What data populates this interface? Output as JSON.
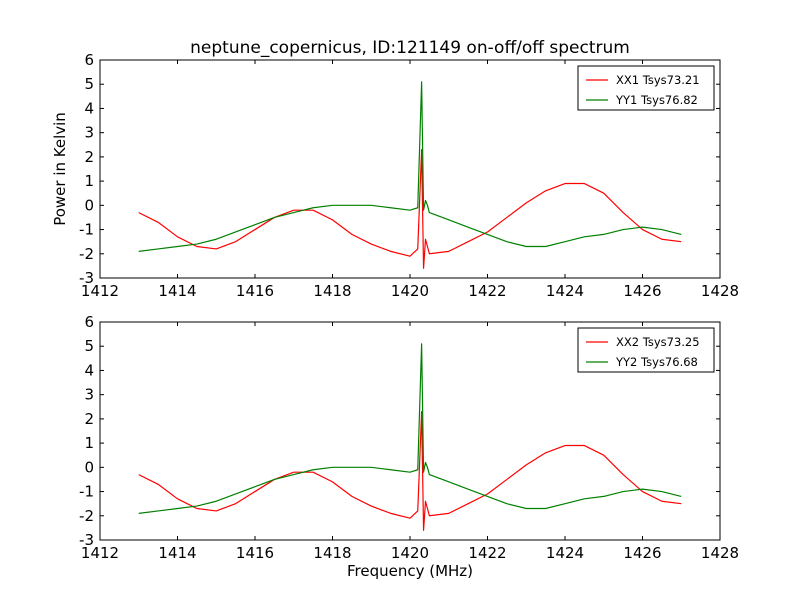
{
  "figure": {
    "title": "neptune_copernicus, ID:121149 on-off/off spectrum"
  },
  "chart_data": [
    {
      "type": "line",
      "title": "neptune_copernicus, ID:121149 on-off/off spectrum",
      "xlabel": "",
      "ylabel": "Power in Kelvin",
      "xlim": [
        1412,
        1428
      ],
      "ylim": [
        -3,
        6
      ],
      "xticks": [
        1412,
        1414,
        1416,
        1418,
        1420,
        1422,
        1424,
        1426,
        1428
      ],
      "yticks": [
        -3,
        -2,
        -1,
        0,
        1,
        2,
        3,
        4,
        5,
        6
      ],
      "grid": false,
      "legend_position": "top-right",
      "series": [
        {
          "name": "XX1 Tsys73.21",
          "color": "#ff0000",
          "x": [
            1413.0,
            1413.5,
            1414.0,
            1414.5,
            1415.0,
            1415.5,
            1416.0,
            1416.5,
            1417.0,
            1417.5,
            1418.0,
            1418.5,
            1419.0,
            1419.5,
            1420.0,
            1420.2,
            1420.3,
            1420.35,
            1420.4,
            1420.45,
            1420.5,
            1421.0,
            1421.5,
            1422.0,
            1422.5,
            1423.0,
            1423.5,
            1424.0,
            1424.5,
            1425.0,
            1425.5,
            1426.0,
            1426.5,
            1427.0
          ],
          "y": [
            -0.3,
            -0.7,
            -1.3,
            -1.7,
            -1.8,
            -1.5,
            -1.0,
            -0.5,
            -0.2,
            -0.2,
            -0.6,
            -1.2,
            -1.6,
            -1.9,
            -2.1,
            -1.8,
            2.3,
            -2.6,
            -1.4,
            -1.7,
            -2.0,
            -1.9,
            -1.5,
            -1.1,
            -0.5,
            0.1,
            0.6,
            0.9,
            0.9,
            0.5,
            -0.3,
            -1.0,
            -1.4,
            -1.5
          ]
        },
        {
          "name": "YY1 Tsys76.82",
          "color": "#008000",
          "x": [
            1413.0,
            1413.5,
            1414.0,
            1414.5,
            1415.0,
            1415.5,
            1416.0,
            1416.5,
            1417.0,
            1417.5,
            1418.0,
            1418.5,
            1419.0,
            1419.5,
            1420.0,
            1420.2,
            1420.3,
            1420.35,
            1420.4,
            1420.45,
            1420.5,
            1421.0,
            1421.5,
            1422.0,
            1422.5,
            1423.0,
            1423.5,
            1424.0,
            1424.5,
            1425.0,
            1425.5,
            1426.0,
            1426.5,
            1427.0
          ],
          "y": [
            -1.9,
            -1.8,
            -1.7,
            -1.6,
            -1.4,
            -1.1,
            -0.8,
            -0.5,
            -0.3,
            -0.1,
            0.0,
            0.0,
            0.0,
            -0.1,
            -0.2,
            -0.1,
            5.1,
            -0.2,
            0.2,
            0.0,
            -0.3,
            -0.6,
            -0.9,
            -1.2,
            -1.5,
            -1.7,
            -1.7,
            -1.5,
            -1.3,
            -1.2,
            -1.0,
            -0.9,
            -1.0,
            -1.2
          ]
        }
      ]
    },
    {
      "type": "line",
      "title": "",
      "xlabel": "Frequency (MHz)",
      "ylabel": "",
      "xlim": [
        1412,
        1428
      ],
      "ylim": [
        -3,
        6
      ],
      "xticks": [
        1412,
        1414,
        1416,
        1418,
        1420,
        1422,
        1424,
        1426,
        1428
      ],
      "yticks": [
        -3,
        -2,
        -1,
        0,
        1,
        2,
        3,
        4,
        5,
        6
      ],
      "grid": false,
      "legend_position": "top-right",
      "series": [
        {
          "name": "XX2 Tsys73.25",
          "color": "#ff0000",
          "x": [
            1413.0,
            1413.5,
            1414.0,
            1414.5,
            1415.0,
            1415.5,
            1416.0,
            1416.5,
            1417.0,
            1417.5,
            1418.0,
            1418.5,
            1419.0,
            1419.5,
            1420.0,
            1420.2,
            1420.3,
            1420.35,
            1420.4,
            1420.45,
            1420.5,
            1421.0,
            1421.5,
            1422.0,
            1422.5,
            1423.0,
            1423.5,
            1424.0,
            1424.5,
            1425.0,
            1425.5,
            1426.0,
            1426.5,
            1427.0
          ],
          "y": [
            -0.3,
            -0.7,
            -1.3,
            -1.7,
            -1.8,
            -1.5,
            -1.0,
            -0.5,
            -0.2,
            -0.2,
            -0.6,
            -1.2,
            -1.6,
            -1.9,
            -2.1,
            -1.8,
            2.3,
            -2.6,
            -1.4,
            -1.7,
            -2.0,
            -1.9,
            -1.5,
            -1.1,
            -0.5,
            0.1,
            0.6,
            0.9,
            0.9,
            0.5,
            -0.3,
            -1.0,
            -1.4,
            -1.5
          ]
        },
        {
          "name": "YY2 Tsys76.68",
          "color": "#008000",
          "x": [
            1413.0,
            1413.5,
            1414.0,
            1414.5,
            1415.0,
            1415.5,
            1416.0,
            1416.5,
            1417.0,
            1417.5,
            1418.0,
            1418.5,
            1419.0,
            1419.5,
            1420.0,
            1420.2,
            1420.3,
            1420.35,
            1420.4,
            1420.45,
            1420.5,
            1421.0,
            1421.5,
            1422.0,
            1422.5,
            1423.0,
            1423.5,
            1424.0,
            1424.5,
            1425.0,
            1425.5,
            1426.0,
            1426.5,
            1427.0
          ],
          "y": [
            -1.9,
            -1.8,
            -1.7,
            -1.6,
            -1.4,
            -1.1,
            -0.8,
            -0.5,
            -0.3,
            -0.1,
            0.0,
            0.0,
            0.0,
            -0.1,
            -0.2,
            -0.1,
            5.1,
            -0.2,
            0.2,
            0.0,
            -0.3,
            -0.6,
            -0.9,
            -1.2,
            -1.5,
            -1.7,
            -1.7,
            -1.5,
            -1.3,
            -1.2,
            -1.0,
            -0.9,
            -1.0,
            -1.2
          ]
        }
      ]
    }
  ]
}
